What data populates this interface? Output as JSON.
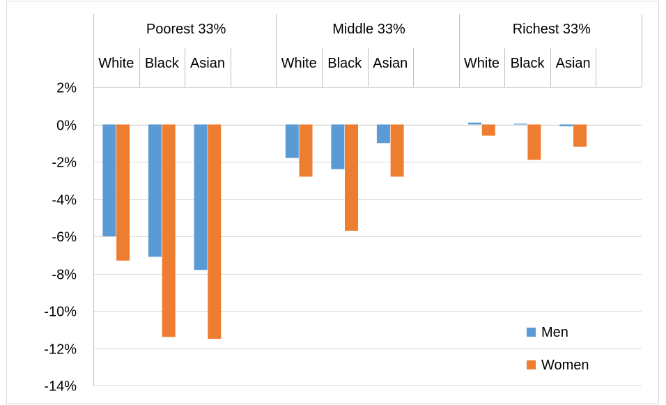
{
  "chart_data": {
    "type": "bar",
    "title": "",
    "xlabel": "",
    "ylabel": "",
    "ylim": [
      -0.14,
      0.02
    ],
    "ytick_step": 0.02,
    "ytick_labels": [
      "2%",
      "0%",
      "-2%",
      "-4%",
      "-6%",
      "-8%",
      "-10%",
      "-12%",
      "-14%"
    ],
    "grid": true,
    "legend_position": "bottom-right",
    "groups": [
      "Poorest 33%",
      "Middle 33%",
      "Richest 33%"
    ],
    "categories": [
      "White",
      "Black",
      "Asian",
      ""
    ],
    "series": [
      {
        "name": "Men",
        "color": "#5b9bd5",
        "values": [
          [
            -0.06,
            -0.071,
            -0.078
          ],
          [
            -0.018,
            -0.024,
            -0.01
          ],
          [
            0.001,
            0.0004,
            -0.001
          ]
        ]
      },
      {
        "name": "Women",
        "color": "#ed7d31",
        "values": [
          [
            -0.073,
            -0.114,
            -0.115
          ],
          [
            -0.028,
            -0.057,
            -0.028
          ],
          [
            -0.006,
            -0.019,
            -0.012
          ]
        ]
      }
    ]
  }
}
